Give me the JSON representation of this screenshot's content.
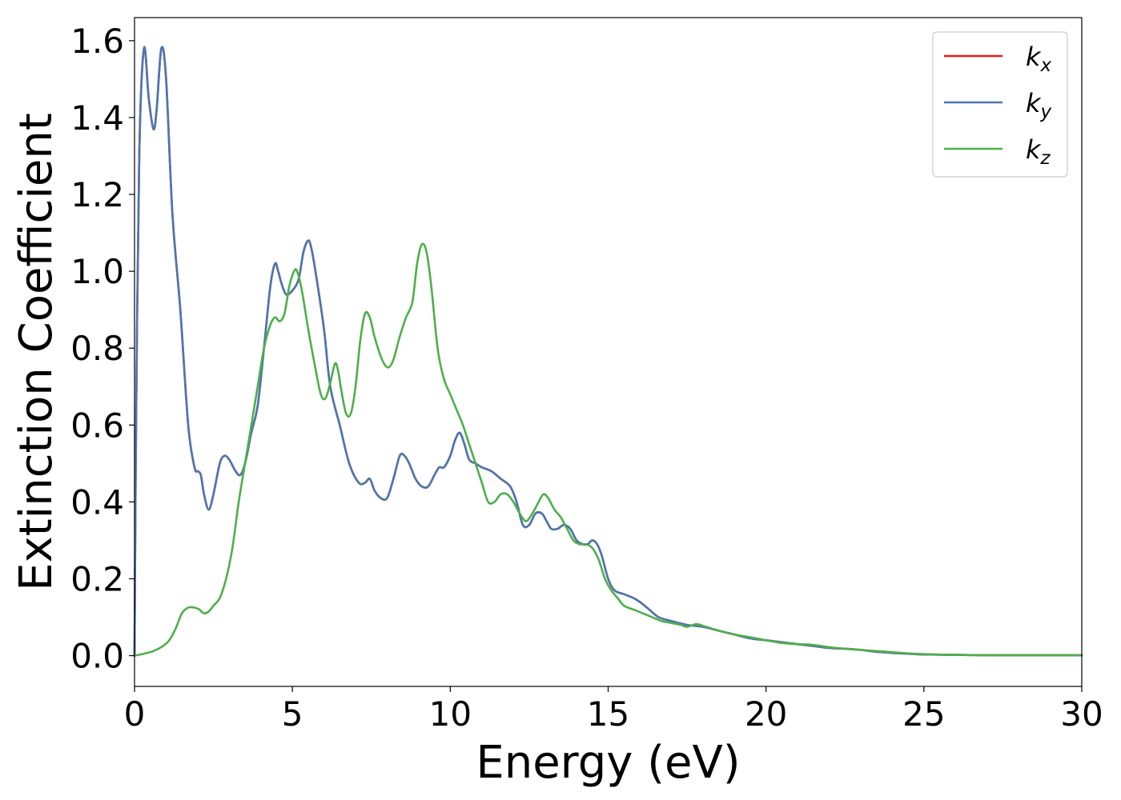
{
  "chart_data": {
    "type": "line",
    "title": "",
    "xlabel": "Energy (eV)",
    "ylabel": "Extinction Coefficient",
    "xlim": [
      0,
      30
    ],
    "ylim": [
      -0.08,
      1.66
    ],
    "xticks": [
      0,
      5,
      10,
      15,
      20,
      25,
      30
    ],
    "xtick_labels": [
      "0",
      "5",
      "10",
      "15",
      "20",
      "25",
      "30"
    ],
    "yticks": [
      0.0,
      0.2,
      0.4,
      0.6,
      0.8,
      1.0,
      1.2,
      1.4,
      1.6
    ],
    "ytick_labels": [
      "0.0",
      "0.2",
      "0.4",
      "0.6",
      "0.8",
      "1.0",
      "1.2",
      "1.4",
      "1.6"
    ],
    "grid": false,
    "legend_position": "top-right",
    "series": [
      {
        "name": "k",
        "subscript": "x",
        "color": "#e41a1c",
        "x": [
          0,
          0.05,
          0.15,
          0.3,
          0.45,
          0.6,
          0.7,
          0.85,
          1.0,
          1.2,
          1.45,
          1.7,
          1.9,
          2.0,
          2.1,
          2.2,
          2.35,
          2.5,
          2.7,
          2.85,
          3.0,
          3.2,
          3.35,
          3.5,
          3.7,
          3.9,
          4.1,
          4.3,
          4.45,
          4.55,
          4.65,
          4.8,
          5.0,
          5.2,
          5.35,
          5.5,
          5.6,
          5.75,
          6.0,
          6.2,
          6.5,
          6.8,
          7.1,
          7.3,
          7.45,
          7.6,
          7.8,
          8.0,
          8.2,
          8.4,
          8.55,
          8.7,
          8.9,
          9.1,
          9.3,
          9.5,
          9.65,
          9.8,
          10.0,
          10.15,
          10.3,
          10.45,
          10.6,
          10.8,
          11.0,
          11.3,
          11.6,
          11.9,
          12.1,
          12.3,
          12.5,
          12.7,
          12.9,
          13.05,
          13.2,
          13.4,
          13.6,
          13.8,
          14.0,
          14.2,
          14.35,
          14.5,
          14.65,
          14.8,
          15.0,
          15.2,
          15.5,
          15.8,
          16.0,
          16.3,
          16.6,
          17.0,
          17.5,
          18.0,
          18.5,
          19.0,
          19.5,
          20.0,
          20.5,
          21.0,
          21.5,
          22.0,
          22.5,
          23.0,
          23.5,
          24.0,
          24.5,
          25.0,
          26.0,
          27.0,
          28.0,
          29.0,
          30.0
        ],
        "y": [
          0.0,
          0.6,
          1.3,
          1.58,
          1.45,
          1.37,
          1.42,
          1.58,
          1.5,
          1.15,
          0.9,
          0.6,
          0.49,
          0.48,
          0.47,
          0.42,
          0.38,
          0.42,
          0.5,
          0.52,
          0.51,
          0.48,
          0.47,
          0.5,
          0.58,
          0.65,
          0.8,
          0.96,
          1.02,
          1.0,
          0.97,
          0.94,
          0.95,
          0.98,
          1.05,
          1.08,
          1.06,
          0.99,
          0.85,
          0.7,
          0.6,
          0.5,
          0.45,
          0.45,
          0.46,
          0.43,
          0.41,
          0.41,
          0.46,
          0.52,
          0.52,
          0.5,
          0.46,
          0.44,
          0.44,
          0.47,
          0.49,
          0.49,
          0.52,
          0.56,
          0.58,
          0.55,
          0.51,
          0.5,
          0.49,
          0.48,
          0.46,
          0.44,
          0.4,
          0.34,
          0.34,
          0.37,
          0.37,
          0.35,
          0.33,
          0.33,
          0.34,
          0.33,
          0.3,
          0.29,
          0.29,
          0.3,
          0.29,
          0.26,
          0.2,
          0.17,
          0.16,
          0.15,
          0.14,
          0.12,
          0.1,
          0.09,
          0.08,
          0.075,
          0.065,
          0.055,
          0.045,
          0.04,
          0.035,
          0.03,
          0.025,
          0.02,
          0.018,
          0.015,
          0.01,
          0.007,
          0.005,
          0.003,
          0.002,
          0.001,
          0.001,
          0.001,
          0.001
        ]
      },
      {
        "name": "k",
        "subscript": "y",
        "color": "#4a78b0",
        "x": [
          0,
          0.05,
          0.15,
          0.3,
          0.45,
          0.6,
          0.7,
          0.85,
          1.0,
          1.2,
          1.45,
          1.7,
          1.9,
          2.0,
          2.1,
          2.2,
          2.35,
          2.5,
          2.7,
          2.85,
          3.0,
          3.2,
          3.35,
          3.5,
          3.7,
          3.9,
          4.1,
          4.3,
          4.45,
          4.55,
          4.65,
          4.8,
          5.0,
          5.2,
          5.35,
          5.5,
          5.6,
          5.75,
          6.0,
          6.2,
          6.5,
          6.8,
          7.1,
          7.3,
          7.45,
          7.6,
          7.8,
          8.0,
          8.2,
          8.4,
          8.55,
          8.7,
          8.9,
          9.1,
          9.3,
          9.5,
          9.65,
          9.8,
          10.0,
          10.15,
          10.3,
          10.45,
          10.6,
          10.8,
          11.0,
          11.3,
          11.6,
          11.9,
          12.1,
          12.3,
          12.5,
          12.7,
          12.9,
          13.05,
          13.2,
          13.4,
          13.6,
          13.8,
          14.0,
          14.2,
          14.35,
          14.5,
          14.65,
          14.8,
          15.0,
          15.2,
          15.5,
          15.8,
          16.0,
          16.3,
          16.6,
          17.0,
          17.5,
          18.0,
          18.5,
          19.0,
          19.5,
          20.0,
          20.5,
          21.0,
          21.5,
          22.0,
          22.5,
          23.0,
          23.5,
          24.0,
          24.5,
          25.0,
          26.0,
          27.0,
          28.0,
          29.0,
          30.0
        ],
        "y": [
          0.0,
          0.6,
          1.3,
          1.58,
          1.45,
          1.37,
          1.42,
          1.58,
          1.5,
          1.15,
          0.9,
          0.6,
          0.49,
          0.48,
          0.47,
          0.42,
          0.38,
          0.42,
          0.5,
          0.52,
          0.51,
          0.48,
          0.47,
          0.5,
          0.58,
          0.65,
          0.8,
          0.96,
          1.02,
          1.0,
          0.97,
          0.94,
          0.95,
          0.98,
          1.05,
          1.08,
          1.06,
          0.99,
          0.85,
          0.7,
          0.6,
          0.5,
          0.45,
          0.45,
          0.46,
          0.43,
          0.41,
          0.41,
          0.46,
          0.52,
          0.52,
          0.5,
          0.46,
          0.44,
          0.44,
          0.47,
          0.49,
          0.49,
          0.52,
          0.56,
          0.58,
          0.55,
          0.51,
          0.5,
          0.49,
          0.48,
          0.46,
          0.44,
          0.4,
          0.34,
          0.34,
          0.37,
          0.37,
          0.35,
          0.33,
          0.33,
          0.34,
          0.33,
          0.3,
          0.29,
          0.29,
          0.3,
          0.29,
          0.26,
          0.2,
          0.17,
          0.16,
          0.15,
          0.14,
          0.12,
          0.1,
          0.09,
          0.08,
          0.075,
          0.065,
          0.055,
          0.045,
          0.04,
          0.035,
          0.03,
          0.025,
          0.02,
          0.018,
          0.015,
          0.01,
          0.007,
          0.005,
          0.003,
          0.002,
          0.001,
          0.001,
          0.001,
          0.001
        ]
      },
      {
        "name": "k",
        "subscript": "z",
        "color": "#4daf4a",
        "x": [
          0,
          0.3,
          0.6,
          0.9,
          1.1,
          1.3,
          1.5,
          1.7,
          1.9,
          2.05,
          2.2,
          2.35,
          2.5,
          2.7,
          2.9,
          3.1,
          3.3,
          3.5,
          3.7,
          3.9,
          4.1,
          4.3,
          4.45,
          4.6,
          4.75,
          4.9,
          5.05,
          5.15,
          5.3,
          5.5,
          5.7,
          5.9,
          6.05,
          6.2,
          6.35,
          6.45,
          6.55,
          6.7,
          6.85,
          7.0,
          7.15,
          7.3,
          7.45,
          7.6,
          7.75,
          7.9,
          8.05,
          8.2,
          8.4,
          8.6,
          8.8,
          8.95,
          9.1,
          9.25,
          9.4,
          9.6,
          9.8,
          10.0,
          10.2,
          10.4,
          10.6,
          10.8,
          11.0,
          11.2,
          11.4,
          11.6,
          11.8,
          12.0,
          12.2,
          12.4,
          12.6,
          12.8,
          12.95,
          13.1,
          13.3,
          13.5,
          13.7,
          13.9,
          14.1,
          14.3,
          14.5,
          14.7,
          14.9,
          15.1,
          15.3,
          15.5,
          15.8,
          16.1,
          16.4,
          16.7,
          17.0,
          17.3,
          17.5,
          17.8,
          18.1,
          18.5,
          19.0,
          19.5,
          20.0,
          20.5,
          21.0,
          21.5,
          22.0,
          22.5,
          23.0,
          23.5,
          24.0,
          24.5,
          25.0,
          26.0,
          27.0,
          28.0,
          29.0,
          30.0
        ],
        "y": [
          0.0,
          0.005,
          0.012,
          0.025,
          0.04,
          0.07,
          0.11,
          0.125,
          0.125,
          0.12,
          0.11,
          0.115,
          0.13,
          0.15,
          0.2,
          0.28,
          0.4,
          0.5,
          0.6,
          0.7,
          0.8,
          0.86,
          0.88,
          0.87,
          0.89,
          0.96,
          1.0,
          1.0,
          0.95,
          0.85,
          0.76,
          0.68,
          0.67,
          0.71,
          0.76,
          0.74,
          0.69,
          0.63,
          0.63,
          0.7,
          0.82,
          0.89,
          0.88,
          0.83,
          0.79,
          0.76,
          0.75,
          0.77,
          0.83,
          0.88,
          0.92,
          1.02,
          1.07,
          1.05,
          0.96,
          0.8,
          0.72,
          0.68,
          0.64,
          0.6,
          0.55,
          0.5,
          0.45,
          0.4,
          0.4,
          0.42,
          0.42,
          0.4,
          0.37,
          0.35,
          0.37,
          0.4,
          0.42,
          0.41,
          0.38,
          0.36,
          0.33,
          0.3,
          0.29,
          0.29,
          0.28,
          0.25,
          0.2,
          0.17,
          0.15,
          0.13,
          0.12,
          0.11,
          0.1,
          0.09,
          0.085,
          0.08,
          0.075,
          0.082,
          0.075,
          0.065,
          0.055,
          0.048,
          0.04,
          0.033,
          0.03,
          0.028,
          0.022,
          0.018,
          0.015,
          0.012,
          0.009,
          0.006,
          0.004,
          0.002,
          0.001,
          0.001,
          0.001,
          0.001
        ]
      }
    ]
  }
}
